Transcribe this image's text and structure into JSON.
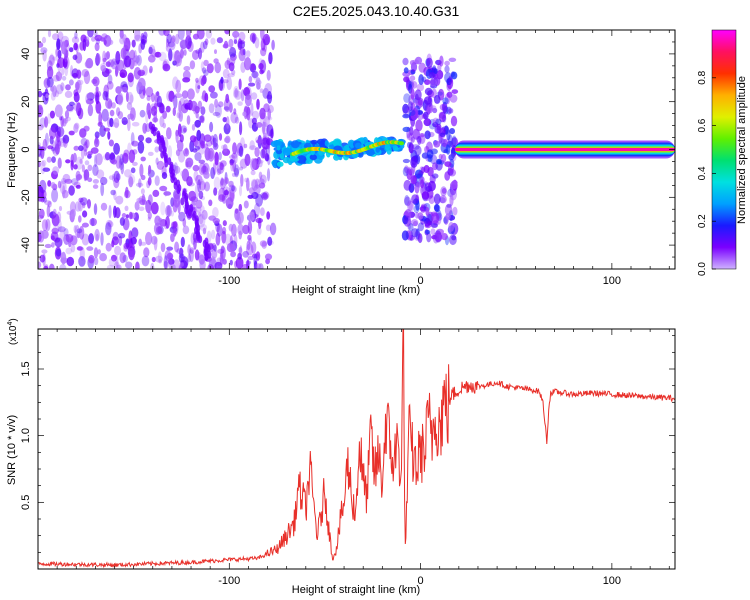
{
  "title": "C2E5.2025.043.10.40.G31",
  "chart_data": [
    {
      "type": "heatmap",
      "xlabel": "Height of straight line (km)",
      "ylabel": "Frequency (Hz)",
      "xlim": [
        -200,
        133
      ],
      "ylim": [
        -50,
        50
      ],
      "xticks": [
        -100,
        0,
        100
      ],
      "xtick_labels": [
        "-100",
        "0",
        "100"
      ],
      "yticks": [
        -40,
        -20,
        0,
        20,
        40
      ],
      "ytick_labels": [
        "-40",
        "-20",
        "0",
        "20",
        "40"
      ],
      "colorbar": {
        "label": "Normalized spectral amplitude",
        "range": [
          0,
          1
        ],
        "ticks": [
          0,
          0.2,
          0.4,
          0.6,
          0.8
        ],
        "tick_labels": [
          "0.0",
          "0.2",
          "0.4",
          "0.6",
          "0.8"
        ],
        "colormap": [
          "#cfb3ff",
          "#7a00ff",
          "#1a1aff",
          "#00a0ff",
          "#00e0e0",
          "#00e070",
          "#60f000",
          "#e0f000",
          "#ffb000",
          "#ff3000",
          "#ff1060",
          "#ff00ff"
        ]
      },
      "regions": [
        {
          "name": "diffuse scatter",
          "x": [
            -200,
            -77
          ],
          "y": [
            -50,
            50
          ],
          "amplitude": 0.05
        },
        {
          "name": "drifting trace",
          "x": [
            -77,
            -10
          ],
          "y_start": -2,
          "y_end": 2,
          "amplitude": 0.6
        },
        {
          "name": "noise band",
          "x": [
            -8,
            18
          ],
          "y": [
            -38,
            38
          ],
          "amplitude": 0.08
        },
        {
          "name": "steady line",
          "x": [
            18,
            133
          ],
          "y": 0,
          "amplitude": 0.9
        }
      ]
    },
    {
      "type": "line",
      "xlabel": "Height of straight line (km)",
      "ylabel": "SNR (10 * v/v)",
      "y_multiplier": "(x10^4)",
      "xlim": [
        -200,
        133
      ],
      "ylim": [
        0,
        18000
      ],
      "xticks": [
        -100,
        0,
        100
      ],
      "xtick_labels": [
        "-100",
        "0",
        "100"
      ],
      "yticks": [
        5000,
        10000,
        15000
      ],
      "ytick_labels": [
        "0.5",
        "1.0",
        "1.5"
      ],
      "series": [
        {
          "color": "#e8302a",
          "x": [
            -200,
            -160,
            -120,
            -100,
            -85,
            -75,
            -70,
            -66,
            -64,
            -62,
            -60,
            -58,
            -56,
            -54,
            -52,
            -50,
            -48,
            -46,
            -44,
            -42,
            -40,
            -38,
            -36,
            -34,
            -32,
            -30,
            -28,
            -26,
            -24,
            -22,
            -20,
            -18,
            -16,
            -14,
            -12,
            -10,
            -9,
            -8,
            -6,
            -4,
            -2,
            0,
            2,
            4,
            6,
            8,
            10,
            12,
            14,
            16,
            18,
            20,
            25,
            30,
            35,
            40,
            45,
            50,
            55,
            60,
            62,
            64,
            65,
            66,
            67,
            68,
            70,
            75,
            80,
            90,
            100,
            110,
            120,
            133
          ],
          "y": [
            400,
            300,
            500,
            700,
            800,
            1500,
            2500,
            3500,
            6000,
            5500,
            4500,
            7500,
            5000,
            2500,
            4000,
            6000,
            3000,
            800,
            1500,
            3500,
            5000,
            8000,
            5500,
            4000,
            9500,
            6500,
            5500,
            10000,
            7000,
            8500,
            6500,
            11500,
            9000,
            8000,
            9500,
            7000,
            18000,
            1500,
            10000,
            8500,
            7500,
            9000,
            8500,
            11000,
            10000,
            12000,
            10500,
            12500,
            12000,
            13000,
            13200,
            13500,
            13800,
            13700,
            13800,
            14000,
            13700,
            13600,
            13500,
            13400,
            13300,
            12500,
            11000,
            9500,
            12000,
            13200,
            13300,
            13200,
            13100,
            13200,
            13100,
            13000,
            12900,
            12800
          ]
        }
      ]
    }
  ]
}
